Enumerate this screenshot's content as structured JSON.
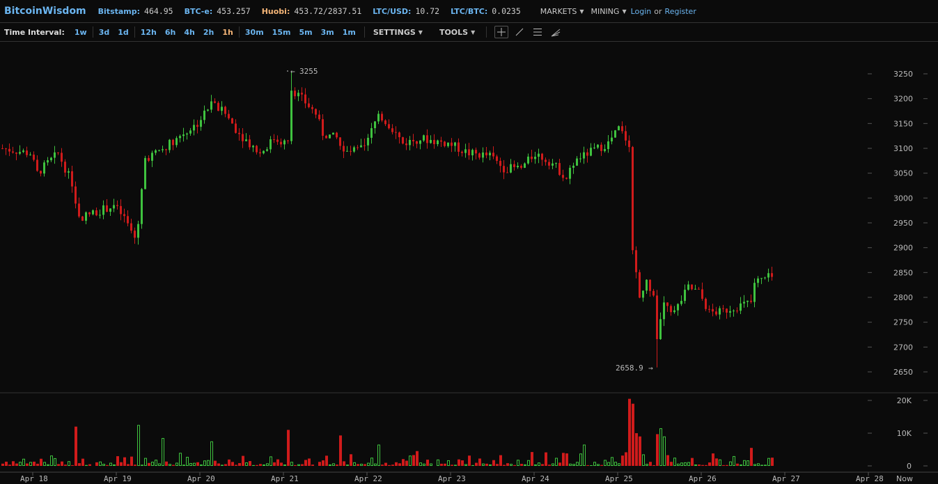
{
  "header": {
    "brand": "BitcoinWisdom",
    "tickers": [
      {
        "label": "Bitstamp:",
        "value": "464.95"
      },
      {
        "label": "BTC-e:",
        "value": "453.257"
      },
      {
        "label": "Huobi:",
        "value": "453.72/2837.51"
      },
      {
        "label": "LTC/USD:",
        "value": "10.72"
      },
      {
        "label": "LTC/BTC:",
        "value": "0.0235"
      }
    ],
    "markets": "MARKETS",
    "mining": "MINING",
    "login": "Login",
    "or": "or",
    "register": "Register"
  },
  "toolbar": {
    "time_interval_label": "Time Interval:",
    "intervals": [
      "1w",
      "3d",
      "1d",
      "12h",
      "6h",
      "4h",
      "2h",
      "1h",
      "30m",
      "15m",
      "5m",
      "3m",
      "1m"
    ],
    "active_interval": "1h",
    "settings": "SETTINGS",
    "tools": "TOOLS",
    "tool_icons": [
      "crosshair-icon",
      "line-icon",
      "parallel-lines-icon",
      "fan-icon"
    ]
  },
  "colors": {
    "up": "#3fc23f",
    "down": "#d01b1b",
    "accent": "#6bb5f0",
    "active": "#f5b577"
  },
  "chart_data": {
    "type": "candlestick",
    "price_ticks": [
      3250,
      3200,
      3150,
      3100,
      3050,
      3000,
      2950,
      2900,
      2850,
      2800,
      2750,
      2700,
      2650
    ],
    "ylim": [
      2650,
      3250
    ],
    "volume_ticks": [
      "20K",
      "10K",
      "0"
    ],
    "volume_ylim": [
      0,
      20000
    ],
    "x_ticks": [
      "Apr 18",
      "Apr 19",
      "Apr 20",
      "Apr 21",
      "Apr 22",
      "Apr 23",
      "Apr 24",
      "Apr 25",
      "Apr 26",
      "Apr 27",
      "Apr 28"
    ],
    "now_label": "Now",
    "high_annotation": "3255",
    "low_annotation": "2658.9",
    "close_path": [
      [
        "Apr 17 15:00",
        3100
      ],
      [
        "Apr 17 23:00",
        3090
      ],
      [
        "Apr 18 01:00",
        3050
      ],
      [
        "Apr 18 07:00",
        3090
      ],
      [
        "Apr 18 11:00",
        3030
      ],
      [
        "Apr 18 13:00",
        2960
      ],
      [
        "Apr 18 17:00",
        2970
      ],
      [
        "Apr 18 23:00",
        2985
      ],
      [
        "Apr 19 02:00",
        2960
      ],
      [
        "Apr 19 05:00",
        2920
      ],
      [
        "Apr 19 06:00",
        2950
      ],
      [
        "Apr 19 08:00",
        3080
      ],
      [
        "Apr 19 11:00",
        3090
      ],
      [
        "Apr 19 15:00",
        3110
      ],
      [
        "Apr 19 19:00",
        3130
      ],
      [
        "Apr 19 23:00",
        3150
      ],
      [
        "Apr 20 03:00",
        3190
      ],
      [
        "Apr 20 07:00",
        3170
      ],
      [
        "Apr 20 11:00",
        3130
      ],
      [
        "Apr 20 17:00",
        3090
      ],
      [
        "Apr 20 21:00",
        3120
      ],
      [
        "Apr 21 01:00",
        3110
      ],
      [
        "Apr 21 02:00",
        3220
      ],
      [
        "Apr 21 05:00",
        3200
      ],
      [
        "Apr 21 09:00",
        3170
      ],
      [
        "Apr 21 11:00",
        3130
      ],
      [
        "Apr 21 15:00",
        3120
      ],
      [
        "Apr 21 17:00",
        3090
      ],
      [
        "Apr 21 23:00",
        3100
      ],
      [
        "Apr 22 03:00",
        3170
      ],
      [
        "Apr 22 07:00",
        3140
      ],
      [
        "Apr 22 10:00",
        3110
      ],
      [
        "Apr 22 15:00",
        3120
      ],
      [
        "Apr 22 23:00",
        3110
      ],
      [
        "Apr 23 05:00",
        3090
      ],
      [
        "Apr 23 11:00",
        3085
      ],
      [
        "Apr 23 15:00",
        3060
      ],
      [
        "Apr 23 20:00",
        3060
      ],
      [
        "Apr 24 00:00",
        3090
      ],
      [
        "Apr 24 05:00",
        3070
      ],
      [
        "Apr 24 09:00",
        3040
      ],
      [
        "Apr 24 11:00",
        3070
      ],
      [
        "Apr 24 15:00",
        3090
      ],
      [
        "Apr 24 21:00",
        3110
      ],
      [
        "Apr 25 00:00",
        3140
      ],
      [
        "Apr 25 03:00",
        3110
      ],
      [
        "Apr 25 04:00",
        2900
      ],
      [
        "Apr 25 06:00",
        2800
      ],
      [
        "Apr 25 08:00",
        2830
      ],
      [
        "Apr 25 10:00",
        2810
      ],
      [
        "Apr 25 11:00",
        2720
      ],
      [
        "Apr 25 13:00",
        2790
      ],
      [
        "Apr 25 16:00",
        2770
      ],
      [
        "Apr 25 20:00",
        2820
      ],
      [
        "Apr 25 23:00",
        2810
      ],
      [
        "Apr 26 02:00",
        2770
      ],
      [
        "Apr 26 05:00",
        2770
      ],
      [
        "Apr 26 09:00",
        2780
      ],
      [
        "Apr 26 14:00",
        2790
      ],
      [
        "Apr 26 15:00",
        2830
      ],
      [
        "Apr 26 19:00",
        2840
      ],
      [
        "Apr 26 20:00",
        2840
      ]
    ],
    "volume_peaks": [
      [
        "Apr 18 12:00",
        12000
      ],
      [
        "Apr 19 06:00",
        12500
      ],
      [
        "Apr 19 13:00",
        8500
      ],
      [
        "Apr 20 03:00",
        7500
      ],
      [
        "Apr 21 01:00",
        11000
      ],
      [
        "Apr 21 16:00",
        9300
      ],
      [
        "Apr 22 03:00",
        6500
      ],
      [
        "Apr 24 14:00",
        6500
      ],
      [
        "Apr 25 03:00",
        20500
      ],
      [
        "Apr 25 04:00",
        19000
      ],
      [
        "Apr 25 05:00",
        10000
      ],
      [
        "Apr 25 06:00",
        9000
      ],
      [
        "Apr 25 11:00",
        9700
      ],
      [
        "Apr 25 12:00",
        11500
      ],
      [
        "Apr 25 13:00",
        9000
      ],
      [
        "Apr 26 14:00",
        5500
      ]
    ]
  }
}
